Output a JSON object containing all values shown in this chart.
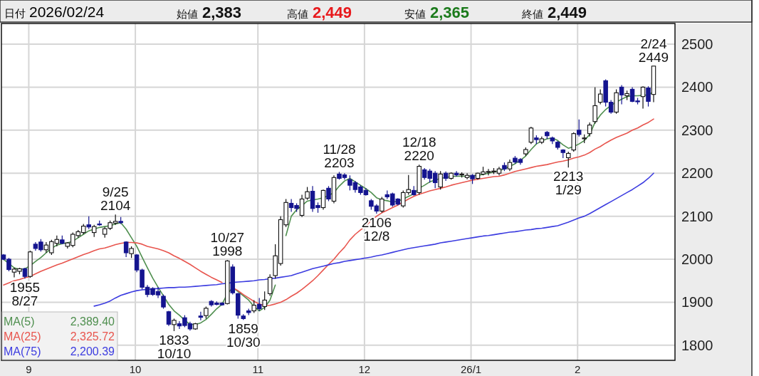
{
  "chart_data": {
    "type": "candlestick",
    "title": "日付 2026/02/24",
    "annotations": [
      "始値 2,383",
      "高値 2,449",
      "安値 2,365",
      "終値 2,449",
      {
        "text": "1955 8/27",
        "y": 1955
      },
      {
        "text": "9/25 2104",
        "y": 2104
      },
      {
        "text": "1833 10/10",
        "y": 1833
      },
      {
        "text": "10/27 1998",
        "y": 1998
      },
      {
        "text": "1859 10/30",
        "y": 1859
      },
      {
        "text": "11/28 2203",
        "y": 2203
      },
      {
        "text": "2106 12/8",
        "y": 2106
      },
      {
        "text": "12/18 2220",
        "y": 2220
      },
      {
        "text": "2213 1/29",
        "y": 2213
      },
      {
        "text": "2/24 2449",
        "y": 2449
      }
    ],
    "categories": [
      null,
      null,
      null,
      null,
      null,
      "9",
      null,
      null,
      null,
      null,
      null,
      null,
      null,
      null,
      null,
      null,
      null,
      null,
      null,
      null,
      null,
      null,
      null,
      null,
      null,
      "10",
      null,
      null,
      null,
      null,
      null,
      null,
      null,
      null,
      null,
      null,
      null,
      null,
      null,
      null,
      null,
      null,
      null,
      null,
      null,
      null,
      null,
      null,
      "11",
      null,
      null,
      null,
      null,
      null,
      null,
      null,
      null,
      null,
      null,
      null,
      null,
      null,
      null,
      null,
      null,
      null,
      null,
      null,
      "12",
      null,
      null,
      null,
      null,
      null,
      null,
      null,
      null,
      null,
      null,
      null,
      null,
      null,
      null,
      null,
      null,
      null,
      null,
      null,
      "26/1",
      null,
      null,
      null,
      null,
      null,
      null,
      null,
      null,
      null,
      null,
      null,
      null,
      null,
      null,
      null,
      null,
      null,
      null,
      null,
      "2",
      null,
      null,
      null,
      null,
      null,
      null,
      null,
      null,
      null,
      null,
      null,
      null,
      null,
      null
    ],
    "colors": [
      "#14148f",
      "#14148f",
      "#ffffff",
      "#ffffff",
      "#14148f",
      "#ffffff",
      "#14148f",
      "#14148f",
      "#ffffff",
      "#ffffff",
      "#ffffff",
      "#14148f",
      "#ffffff",
      "#ffffff",
      "#ffffff",
      "#ffffff",
      "#14148f",
      "#ffffff",
      "#14148f",
      "#ffffff",
      "#ffffff",
      "#ffffff",
      "#14148f",
      "#14148f",
      "#ffffff",
      "#14148f",
      "#14148f",
      "#14148f",
      "#14148f",
      "#14148f",
      "#14148f",
      "#14148f",
      "#ffffff",
      "#14148f",
      "#14148f",
      "#14148f",
      "#ffffff",
      "#14148f",
      "#ffffff",
      "#14148f",
      "#14148f",
      "#14148f",
      "#ffffff",
      "#14148f",
      "#14148f",
      "#14148f",
      "#14148f",
      "#ffffff",
      "#14148f",
      "#ffffff",
      "#ffffff",
      "#ffffff",
      "#ffffff",
      "#ffffff",
      "#14148f",
      "#14148f",
      "#ffffff",
      "#ffffff",
      "#14148f",
      "#14148f",
      "#ffffff",
      "#14148f",
      "#ffffff",
      "#14148f",
      "#14148f",
      "#14148f",
      "#14148f",
      "#14148f",
      "#14148f",
      "#14148f",
      "#14148f",
      "#ffffff",
      "#14148f",
      "#14148f",
      "#14148f",
      "#ffffff",
      "#ffffff",
      "#14148f",
      "#ffffff",
      "#14148f",
      "#14148f",
      "#14148f",
      "#ffffff",
      "#14148f",
      "#ffffff",
      "#14148f",
      "#ffffff",
      "#ffffff",
      "#14148f",
      "#ffffff",
      "#ffffff",
      "#ffffff",
      "#ffffff",
      "#ffffff",
      "#14148f",
      "#ffffff",
      "#14148f",
      "#14148f",
      "#ffffff",
      "#ffffff",
      "#14148f",
      "#ffffff",
      "#14148f",
      "#14148f",
      "#14148f",
      "#14148f",
      "#ffffff",
      "#ffffff",
      "#14148f",
      "#ffffff",
      "#ffffff",
      "#ffffff",
      "#ffffff",
      "#14148f",
      "#14148f",
      "#ffffff",
      "#14148f",
      "#ffffff",
      "#14148f",
      "#14148f",
      "#ffffff",
      "#14148f",
      "#ffffff"
    ],
    "ohlc": [
      [
        2010,
        2012,
        1998,
        2000
      ],
      [
        2000,
        2003,
        1972,
        1976
      ],
      [
        1970,
        1980,
        1958,
        1977
      ],
      [
        1972,
        1980,
        1965,
        1978
      ],
      [
        1978,
        1980,
        1955,
        1960
      ],
      [
        1960,
        2020,
        1957,
        2017
      ],
      [
        2035,
        2040,
        2020,
        2025
      ],
      [
        2040,
        2047,
        2018,
        2022
      ],
      [
        2022,
        2040,
        2015,
        2033
      ],
      [
        2015,
        2045,
        2010,
        2041
      ],
      [
        2037,
        2055,
        2030,
        2046
      ],
      [
        2045,
        2055,
        2035,
        2037
      ],
      [
        2030,
        2040,
        2025,
        2038
      ],
      [
        2032,
        2062,
        2028,
        2058
      ],
      [
        2055,
        2068,
        2050,
        2064
      ],
      [
        2062,
        2082,
        2058,
        2077
      ],
      [
        2080,
        2100,
        2070,
        2075
      ],
      [
        2062,
        2080,
        2052,
        2076
      ],
      [
        2082,
        2090,
        2078,
        2080
      ],
      [
        2058,
        2075,
        2050,
        2071
      ],
      [
        2072,
        2090,
        2068,
        2085
      ],
      [
        2084,
        2104,
        2080,
        2088
      ],
      [
        2088,
        2098,
        2082,
        2085
      ],
      [
        2040,
        2042,
        2005,
        2015
      ],
      [
        2013,
        2030,
        2003,
        2025
      ],
      [
        2010,
        2012,
        1970,
        1975
      ],
      [
        1975,
        1978,
        1930,
        1935
      ],
      [
        1935,
        1940,
        1912,
        1918
      ],
      [
        1932,
        1935,
        1915,
        1918
      ],
      [
        1925,
        1935,
        1910,
        1917
      ],
      [
        1914,
        1918,
        1885,
        1889
      ],
      [
        1878,
        1880,
        1845,
        1849
      ],
      [
        1848,
        1862,
        1833,
        1858
      ],
      [
        1850,
        1856,
        1838,
        1845
      ],
      [
        1864,
        1870,
        1842,
        1846
      ],
      [
        1850,
        1855,
        1834,
        1838
      ],
      [
        1838,
        1852,
        1836,
        1850
      ],
      [
        1868,
        1878,
        1858,
        1865
      ],
      [
        1869,
        1890,
        1862,
        1886
      ],
      [
        1902,
        1905,
        1890,
        1894
      ],
      [
        1898,
        1902,
        1893,
        1895
      ],
      [
        1898,
        1900,
        1892,
        1894
      ],
      [
        1897,
        1998,
        1895,
        1996
      ],
      [
        1982,
        1988,
        1918,
        1922
      ],
      [
        1920,
        1922,
        1862,
        1870
      ],
      [
        1868,
        1872,
        1859,
        1862
      ],
      [
        1880,
        1885,
        1870,
        1876
      ],
      [
        1880,
        1905,
        1875,
        1893
      ],
      [
        1895,
        1910,
        1880,
        1885
      ],
      [
        1890,
        1925,
        1882,
        1905
      ],
      [
        1920,
        1965,
        1915,
        1958
      ],
      [
        1962,
        2035,
        1955,
        2008
      ],
      [
        1990,
        2100,
        1985,
        2092
      ],
      [
        2080,
        2140,
        2075,
        2132
      ],
      [
        2130,
        2140,
        2110,
        2120
      ],
      [
        2125,
        2130,
        2110,
        2118
      ],
      [
        2102,
        2150,
        2098,
        2140
      ],
      [
        2142,
        2168,
        2138,
        2157
      ],
      [
        2158,
        2170,
        2110,
        2118
      ],
      [
        2125,
        2132,
        2108,
        2120
      ],
      [
        2120,
        2162,
        2115,
        2160
      ],
      [
        2165,
        2170,
        2135,
        2140
      ],
      [
        2135,
        2195,
        2130,
        2190
      ],
      [
        2198,
        2203,
        2185,
        2188
      ],
      [
        2196,
        2200,
        2185,
        2190
      ],
      [
        2185,
        2195,
        2160,
        2172
      ],
      [
        2178,
        2182,
        2155,
        2162
      ],
      [
        2168,
        2172,
        2150,
        2155
      ],
      [
        2160,
        2165,
        2148,
        2150
      ],
      [
        2136,
        2140,
        2115,
        2123
      ],
      [
        2124,
        2128,
        2106,
        2112
      ],
      [
        2112,
        2145,
        2108,
        2140
      ],
      [
        2150,
        2160,
        2140,
        2145
      ],
      [
        2152,
        2155,
        2122,
        2126
      ],
      [
        2140,
        2142,
        2125,
        2128
      ],
      [
        2124,
        2160,
        2120,
        2155
      ],
      [
        2155,
        2196,
        2150,
        2162
      ],
      [
        2160,
        2170,
        2148,
        2150
      ],
      [
        2155,
        2220,
        2150,
        2216
      ],
      [
        2208,
        2212,
        2185,
        2190
      ],
      [
        2205,
        2210,
        2178,
        2188
      ],
      [
        2200,
        2205,
        2165,
        2178
      ],
      [
        2168,
        2205,
        2162,
        2198
      ],
      [
        2200,
        2204,
        2182,
        2188
      ],
      [
        2188,
        2202,
        2185,
        2200
      ],
      [
        2200,
        2205,
        2192,
        2196
      ],
      [
        2196,
        2202,
        2190,
        2198
      ],
      [
        2190,
        2200,
        2186,
        2195
      ],
      [
        2195,
        2198,
        2175,
        2187
      ],
      [
        2188,
        2201,
        2185,
        2200
      ],
      [
        2198,
        2215,
        2195,
        2203
      ],
      [
        2202,
        2210,
        2195,
        2204
      ],
      [
        2203,
        2212,
        2198,
        2205
      ],
      [
        2200,
        2215,
        2195,
        2210
      ],
      [
        2218,
        2225,
        2205,
        2210
      ],
      [
        2210,
        2232,
        2205,
        2225
      ],
      [
        2235,
        2240,
        2222,
        2226
      ],
      [
        2232,
        2235,
        2220,
        2225
      ],
      [
        2245,
        2260,
        2240,
        2255
      ],
      [
        2272,
        2308,
        2268,
        2305
      ],
      [
        2282,
        2288,
        2268,
        2278
      ],
      [
        2272,
        2285,
        2268,
        2280
      ],
      [
        2295,
        2298,
        2280,
        2287
      ],
      [
        2282,
        2285,
        2268,
        2275
      ],
      [
        2272,
        2275,
        2255,
        2260
      ],
      [
        2254,
        2256,
        2235,
        2248
      ],
      [
        2236,
        2250,
        2213,
        2246
      ],
      [
        2254,
        2295,
        2250,
        2292
      ],
      [
        2300,
        2325,
        2285,
        2290
      ],
      [
        2280,
        2290,
        2270,
        2282
      ],
      [
        2292,
        2318,
        2285,
        2312
      ],
      [
        2320,
        2400,
        2315,
        2357
      ],
      [
        2365,
        2395,
        2360,
        2384
      ],
      [
        2415,
        2418,
        2355,
        2365
      ],
      [
        2365,
        2370,
        2338,
        2342
      ],
      [
        2342,
        2395,
        2338,
        2387
      ],
      [
        2400,
        2405,
        2360,
        2382
      ],
      [
        2380,
        2392,
        2370,
        2385
      ],
      [
        2395,
        2400,
        2365,
        2367
      ],
      [
        2368,
        2375,
        2360,
        2366
      ],
      [
        2378,
        2402,
        2350,
        2400
      ],
      [
        2398,
        2402,
        2355,
        2367
      ],
      [
        2383,
        2449,
        2365,
        2449
      ]
    ],
    "series": [
      {
        "type": "line",
        "name": "MA(5) 2,389.40",
        "color": "#4f8f4f",
        "values": [
          2000,
          1990,
          1980,
          1976,
          1978,
          1985,
          1995,
          2004,
          2015,
          2025,
          2033,
          2036,
          2038,
          2042,
          2050,
          2058,
          2066,
          2070,
          2074,
          2076,
          2078,
          2082,
          2085,
          2070,
          2050,
          2030,
          2005,
          1980,
          1956,
          1935,
          1915,
          1895,
          1880,
          1870,
          1858,
          1849,
          1848,
          1852,
          1860,
          1872,
          1885,
          1895,
          1920,
          1934,
          1925,
          1915,
          1905,
          1890,
          1880,
          1888,
          1905,
          1940,
          null,
          2055,
          2100,
          2115,
          2125,
          2135,
          2138,
          2140,
          2143,
          2148,
          2155,
          2170,
          2182,
          2188,
          2180,
          2172,
          2164,
          2155,
          2143,
          2138,
          2136,
          2133,
          2135,
          2140,
          2146,
          2152,
          2165,
          2172,
          2180,
          2184,
          2188,
          2190,
          2192,
          2193,
          2193,
          2193,
          2194,
          2195,
          2197,
          2200,
          2203,
          2206,
          2210,
          2216,
          2222,
          2230,
          2240,
          2255,
          2268,
          2275,
          2280,
          2282,
          2276,
          2266,
          2258,
          2262,
          2268,
          2276,
          2290,
          2318,
          2335,
          2348,
          2358,
          2365,
          2372,
          2378,
          2380,
          2380,
          2381,
          2382,
          2389
        ]
      },
      {
        "type": "line",
        "name": "MA(25) 2,325.72",
        "color": "#e8554e",
        "values": [
          1940,
          1945,
          1950,
          1953,
          1957,
          1960,
          1966,
          1972,
          1977,
          1982,
          1987,
          1991,
          1996,
          2001,
          2006,
          2011,
          2015,
          2020,
          2024,
          2026,
          2030,
          2034,
          2037,
          2039,
          2039,
          2038,
          2035,
          2030,
          2027,
          2024,
          2020,
          2015,
          2008,
          2002,
          1995,
          1988,
          1980,
          1972,
          1965,
          1958,
          1952,
          1946,
          null,
          1934,
          1927,
          1918,
          1910,
          1902,
          1896,
          1892,
          1893,
          1896,
          1900,
          1906,
          1914,
          1921,
          1930,
          1940,
          1950,
          1962,
          1975,
          1988,
          2000,
          2015,
          2028,
          2045,
          2058,
          2068,
          2078,
          2090,
          2100,
          2108,
          2114,
          2120,
          2126,
          2133,
          2140,
          2146,
          2151,
          2155,
          2159,
          2162,
          2165,
          2168,
          2172,
          2175,
          2178,
          2181,
          2184,
          2186,
          2188,
          2190,
          2192,
          2193,
          2196,
          2200,
          2204,
          2207,
          2210,
          2213,
          2216,
          2218,
          2220,
          2223,
          2226,
          2228,
          2231,
          2235,
          2238,
          2242,
          2248,
          2256,
          2262,
          2270,
          2277,
          2283,
          2288,
          2293,
          2300,
          2305,
          2312,
          2318,
          2326
        ]
      },
      {
        "type": "line",
        "name": "MA(75) 2,200.39",
        "color": "#3c3ce0",
        "values": [
          null,
          null,
          null,
          null,
          null,
          null,
          null,
          null,
          null,
          null,
          null,
          null,
          null,
          null,
          null,
          null,
          null,
          1891,
          1894,
          1898,
          1903,
          1910,
          1916,
          1920,
          1924,
          1927,
          1929,
          1930,
          1931,
          1932,
          1933,
          1934,
          1934,
          1935,
          1935,
          1936,
          1937,
          1938,
          1939,
          1940,
          1941,
          1943,
          1944,
          1946,
          1947,
          1948,
          1949,
          1950,
          1952,
          1953,
          1955,
          1956,
          1958,
          1960,
          1962,
          1966,
          1970,
          1974,
          1978,
          1981,
          1984,
          1987,
          1990,
          1992,
          1995,
          1997,
          1999,
          2001,
          2003,
          2005,
          2008,
          2010,
          2013,
          2016,
          2019,
          2022,
          2025,
          2027,
          2029,
          2031,
          2033,
          2035,
          2038,
          2040,
          2042,
          2044,
          2046,
          2048,
          2050,
          2052,
          2054,
          2055,
          2057,
          2059,
          2061,
          2063,
          2064,
          2066,
          2068,
          2069,
          2071,
          2072,
          2074,
          2076,
          2078,
          2082,
          2086,
          2091,
          2096,
          2100,
          2106,
          2113,
          2120,
          2127,
          2134,
          2141,
          2148,
          2155,
          2162,
          2170,
          2178,
          2188,
          2200
        ]
      }
    ],
    "ylim": [
      1765,
      2548
    ],
    "yticks": [
      1800,
      1900,
      2000,
      2100,
      2200,
      2300,
      2400,
      2500
    ],
    "grid": true
  }
}
